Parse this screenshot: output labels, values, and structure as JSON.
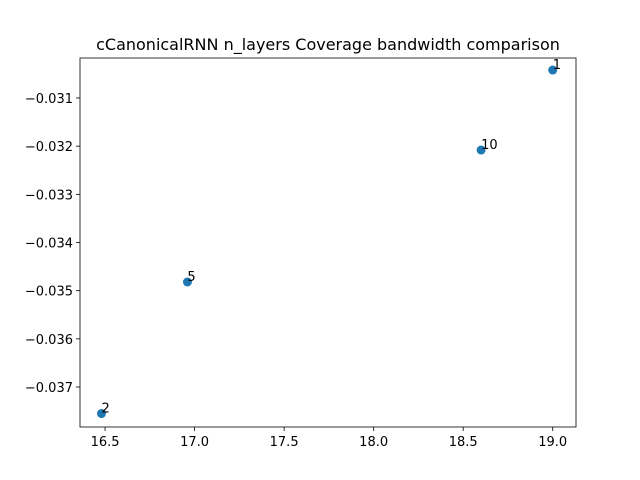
{
  "chart_data": {
    "type": "scatter",
    "title": "cCanonicalRNN n_layers Coverage bandwidth comparison",
    "xlabel": "",
    "ylabel": "",
    "xlim": [
      16.36,
      19.13
    ],
    "ylim": [
      -0.03783,
      -0.03017
    ],
    "grid": false,
    "x_ticks": [
      16.5,
      17.0,
      17.5,
      18.0,
      18.5,
      19.0
    ],
    "x_tick_labels": [
      "16.5",
      "17.0",
      "17.5",
      "18.0",
      "18.5",
      "19.0"
    ],
    "y_ticks": [
      -0.031,
      -0.032,
      -0.033,
      -0.034,
      -0.035,
      -0.036,
      -0.037
    ],
    "y_tick_labels": [
      "−0.031",
      "−0.032",
      "−0.033",
      "−0.034",
      "−0.035",
      "−0.036",
      "−0.037"
    ],
    "points": [
      {
        "label": "1",
        "x": 19.0,
        "y": -0.03042
      },
      {
        "label": "10",
        "x": 18.6,
        "y": -0.03208
      },
      {
        "label": "5",
        "x": 16.96,
        "y": -0.03482
      },
      {
        "label": "2",
        "x": 16.48,
        "y": -0.03755
      }
    ],
    "color": "#1f77b4"
  }
}
